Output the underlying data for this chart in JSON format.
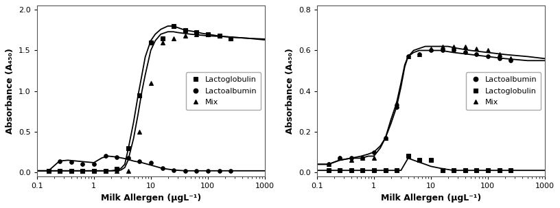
{
  "fig_width": 8.16,
  "fig_height": 3.03,
  "dpi": 100,
  "background_color": "#ffffff",
  "border_color": "#888888",
  "left_plot": {
    "xlabel": "Milk Allergen (μgL⁻¹)",
    "ylabel": "Absorbance (A₄₅₀)",
    "xlim": [
      0.1,
      1000
    ],
    "ylim": [
      -0.05,
      2.05
    ],
    "yticks": [
      0.0,
      0.5,
      1.0,
      1.5,
      2.0
    ],
    "series": [
      {
        "label": "Lactoglobulin",
        "marker": "s",
        "color": "#000000",
        "x": [
          0.16,
          0.25,
          0.4,
          0.63,
          1.0,
          1.6,
          2.5,
          4.0,
          6.3,
          10,
          16,
          25,
          40,
          63,
          100,
          160,
          250
        ],
        "y": [
          0.02,
          0.02,
          0.02,
          0.02,
          0.02,
          0.02,
          0.04,
          0.3,
          0.95,
          1.6,
          1.65,
          1.8,
          1.75,
          1.72,
          1.7,
          1.68,
          1.65
        ],
        "curve_x": [
          0.1,
          0.2,
          0.4,
          0.8,
          1.5,
          2.0,
          2.5,
          3.0,
          3.5,
          4.0,
          5.0,
          6.0,
          7.0,
          8.0,
          10,
          12,
          15,
          20,
          25,
          30,
          40,
          60,
          80,
          100,
          150,
          200,
          300,
          500,
          1000
        ],
        "curve_y": [
          0.02,
          0.02,
          0.02,
          0.02,
          0.02,
          0.02,
          0.03,
          0.05,
          0.1,
          0.28,
          0.62,
          0.95,
          1.2,
          1.42,
          1.62,
          1.7,
          1.76,
          1.8,
          1.8,
          1.78,
          1.75,
          1.73,
          1.71,
          1.7,
          1.68,
          1.67,
          1.66,
          1.65,
          1.63
        ]
      },
      {
        "label": "Lactoalbumin",
        "marker": "o",
        "color": "#000000",
        "x": [
          0.16,
          0.25,
          0.4,
          0.63,
          1.0,
          1.6,
          2.5,
          4.0,
          6.3,
          10,
          16,
          25,
          40,
          63,
          100,
          160,
          250
        ],
        "y": [
          0.02,
          0.14,
          0.13,
          0.1,
          0.1,
          0.2,
          0.19,
          0.18,
          0.14,
          0.12,
          0.05,
          0.03,
          0.02,
          0.02,
          0.02,
          0.02,
          0.02
        ],
        "curve_x": [
          0.1,
          0.16,
          0.2,
          0.25,
          0.35,
          0.5,
          0.7,
          1.0,
          1.4,
          1.8,
          2.5,
          3.5,
          5.0,
          7.0,
          10,
          16,
          25,
          40,
          100,
          250,
          1000
        ],
        "curve_y": [
          0.02,
          0.02,
          0.08,
          0.14,
          0.15,
          0.14,
          0.13,
          0.12,
          0.18,
          0.2,
          0.19,
          0.17,
          0.14,
          0.12,
          0.09,
          0.05,
          0.03,
          0.02,
          0.02,
          0.02,
          0.02
        ]
      },
      {
        "label": "Mix",
        "marker": "^",
        "color": "#000000",
        "x": [
          0.16,
          0.25,
          0.4,
          0.63,
          1.0,
          1.6,
          2.5,
          4.0,
          6.3,
          10,
          16,
          25,
          40,
          63,
          100,
          160,
          250
        ],
        "y": [
          0.02,
          0.02,
          0.02,
          0.02,
          0.02,
          0.02,
          0.02,
          0.02,
          0.5,
          1.1,
          1.6,
          1.65,
          1.68,
          1.7,
          1.7,
          1.68,
          1.65
        ],
        "curve_x": [
          0.1,
          0.5,
          1.0,
          1.5,
          2.0,
          2.5,
          3.0,
          3.5,
          4.0,
          5.0,
          6.0,
          7.0,
          8.0,
          10,
          12,
          15,
          20,
          25,
          30,
          50,
          100,
          200,
          500,
          1000
        ],
        "curve_y": [
          0.02,
          0.02,
          0.02,
          0.02,
          0.02,
          0.02,
          0.03,
          0.06,
          0.15,
          0.42,
          0.72,
          1.0,
          1.2,
          1.5,
          1.62,
          1.7,
          1.73,
          1.73,
          1.72,
          1.7,
          1.68,
          1.67,
          1.65,
          1.64
        ]
      }
    ],
    "legend_order": [
      0,
      1,
      2
    ]
  },
  "right_plot": {
    "xlabel": "Milk Allergen (μgL⁻¹)",
    "ylabel": "Absorbance (A₄₅₀)",
    "xlim": [
      0.1,
      1000
    ],
    "ylim": [
      -0.02,
      0.82
    ],
    "yticks": [
      0.0,
      0.2,
      0.4,
      0.6,
      0.8
    ],
    "series": [
      {
        "label": "Lactoalbumin",
        "marker": "o",
        "color": "#000000",
        "x": [
          0.16,
          0.25,
          0.4,
          0.63,
          1.0,
          1.6,
          2.5,
          4.0,
          6.3,
          10,
          16,
          25,
          40,
          63,
          100,
          160,
          250
        ],
        "y": [
          0.04,
          0.07,
          0.07,
          0.07,
          0.1,
          0.17,
          0.32,
          0.57,
          0.58,
          0.6,
          0.6,
          0.6,
          0.59,
          0.58,
          0.57,
          0.56,
          0.55
        ],
        "curve_x": [
          0.1,
          0.16,
          0.25,
          0.4,
          0.6,
          0.8,
          1.0,
          1.3,
          1.6,
          2.0,
          2.5,
          3.0,
          3.5,
          4.0,
          5.0,
          6.3,
          8.0,
          10,
          15,
          25,
          50,
          100,
          200,
          500,
          1000
        ],
        "curve_y": [
          0.04,
          0.04,
          0.06,
          0.07,
          0.08,
          0.09,
          0.1,
          0.13,
          0.17,
          0.24,
          0.32,
          0.42,
          0.52,
          0.57,
          0.59,
          0.6,
          0.6,
          0.6,
          0.6,
          0.59,
          0.58,
          0.57,
          0.56,
          0.55,
          0.55
        ]
      },
      {
        "label": "Lactoglobulin",
        "marker": "s",
        "color": "#000000",
        "x": [
          0.16,
          0.25,
          0.4,
          0.63,
          1.0,
          1.6,
          2.5,
          4.0,
          6.3,
          10,
          16,
          25,
          40,
          63,
          100,
          160,
          250
        ],
        "y": [
          0.01,
          0.01,
          0.01,
          0.01,
          0.01,
          0.01,
          0.01,
          0.08,
          0.06,
          0.06,
          0.01,
          0.01,
          0.01,
          0.01,
          0.01,
          0.01,
          0.01
        ],
        "curve_x": [
          0.1,
          0.5,
          1.0,
          2.0,
          3.0,
          4.0,
          5.0,
          6.3,
          8.0,
          10,
          15,
          25,
          50,
          100,
          250,
          1000
        ],
        "curve_y": [
          0.01,
          0.01,
          0.01,
          0.01,
          0.01,
          0.07,
          0.06,
          0.05,
          0.04,
          0.03,
          0.02,
          0.01,
          0.01,
          0.01,
          0.01,
          0.01
        ]
      },
      {
        "label": "Mix",
        "marker": "^",
        "color": "#000000",
        "x": [
          0.16,
          0.25,
          0.4,
          0.63,
          1.0,
          1.6,
          2.5,
          4.0,
          6.3,
          10,
          16,
          25,
          40,
          63,
          100,
          160,
          250
        ],
        "y": [
          0.04,
          0.07,
          0.06,
          0.07,
          0.07,
          0.17,
          0.34,
          0.57,
          0.58,
          0.61,
          0.62,
          0.62,
          0.62,
          0.61,
          0.6,
          0.58,
          0.56
        ],
        "curve_x": [
          0.1,
          0.16,
          0.25,
          0.4,
          0.6,
          0.8,
          1.0,
          1.3,
          1.6,
          2.0,
          2.5,
          3.0,
          3.5,
          4.0,
          5.0,
          6.3,
          8.0,
          10,
          15,
          20,
          30,
          50,
          100,
          200,
          500,
          1000
        ],
        "curve_y": [
          0.04,
          0.04,
          0.06,
          0.07,
          0.07,
          0.08,
          0.08,
          0.12,
          0.17,
          0.26,
          0.34,
          0.44,
          0.53,
          0.57,
          0.6,
          0.61,
          0.62,
          0.62,
          0.62,
          0.62,
          0.61,
          0.6,
          0.59,
          0.58,
          0.57,
          0.56
        ]
      }
    ],
    "legend_order": [
      0,
      1,
      2
    ]
  },
  "font_size": 9,
  "label_font_size": 9,
  "legend_font_size": 8,
  "marker_size": 4,
  "line_width": 1.3,
  "tick_label_size": 8
}
